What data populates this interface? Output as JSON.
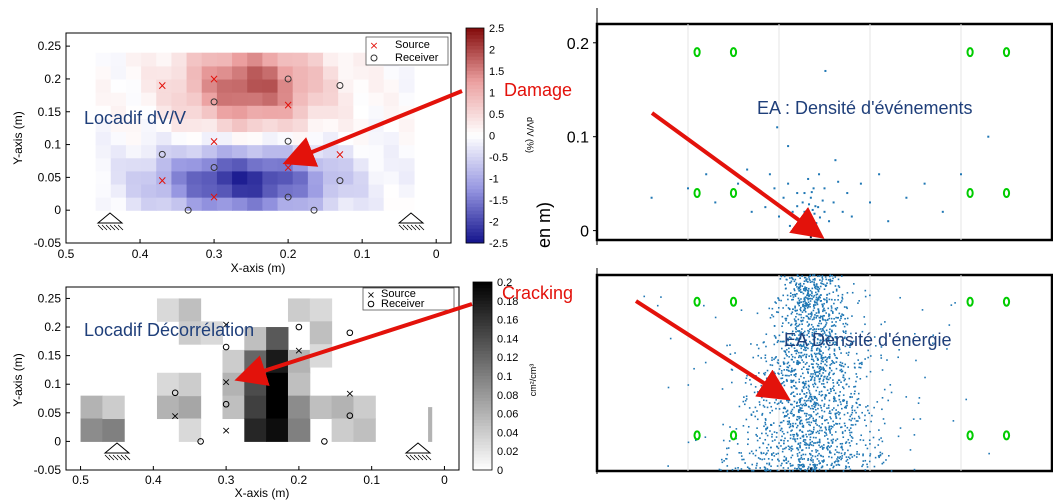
{
  "annotations": {
    "damage": "Damage",
    "cracking": "Cracking",
    "locadif_dvv": "Locadif dV/V",
    "locadif_decorr": "Locadif Décorrélation",
    "ea_events": "EA : Densité d'événements",
    "ea_energy": "EA   Densité d'énergie",
    "partial_axis": "en m)"
  },
  "colors": {
    "arrow": "#e3120b",
    "overlay_text": "#1f3f7a",
    "ae_points": "#1f77b4",
    "sensors": "#00cc00"
  },
  "chart_data": [
    {
      "type": "heatmap",
      "id": "dvv",
      "title": "",
      "xlabel": "X-axis (m)",
      "ylabel": "Y-axis (m)",
      "xlim": [
        0.5,
        -0.02
      ],
      "ylim": [
        -0.05,
        0.27
      ],
      "xticks": [
        "0.5",
        "0.4",
        "0.3",
        "0.2",
        "0.1",
        "0"
      ],
      "xtick_values": [
        0.5,
        0.4,
        0.3,
        0.2,
        0.1,
        0
      ],
      "yticks": [
        "-0.05",
        "0",
        "0.05",
        "0.1",
        "0.15",
        "0.2",
        "0.25"
      ],
      "ytick_values": [
        -0.05,
        0,
        0.05,
        0.1,
        0.15,
        0.2,
        0.25
      ],
      "colorbar": {
        "range": [
          -2.5,
          2.5
        ],
        "ticks": [
          "2.5",
          "2",
          "1.5",
          "1",
          "0.5",
          "0",
          "-0.5",
          "-1",
          "-1.5",
          "-2",
          "-2.5"
        ],
        "tick_values": [
          2.5,
          2,
          1.5,
          1,
          0.5,
          0,
          -0.5,
          -1,
          -1.5,
          -2,
          -2.5
        ],
        "label": "dV/V (%)",
        "colormap": "blue-white-red"
      },
      "legend": {
        "position": "top-right",
        "entries": [
          {
            "label": "Source",
            "marker": "x",
            "color": "#e3120b"
          },
          {
            "label": "Receiver",
            "marker": "o",
            "color": "#333333"
          }
        ]
      },
      "sources": [
        [
          0.37,
          0.19
        ],
        [
          0.3,
          0.2
        ],
        [
          0.2,
          0.16
        ],
        [
          0.3,
          0.105
        ],
        [
          0.13,
          0.085
        ],
        [
          0.37,
          0.045
        ],
        [
          0.2,
          0.065
        ],
        [
          0.3,
          0.02
        ]
      ],
      "receivers": [
        [
          0.2,
          0.2
        ],
        [
          0.13,
          0.19
        ],
        [
          0.3,
          0.165
        ],
        [
          0.2,
          0.105
        ],
        [
          0.37,
          0.085
        ],
        [
          0.3,
          0.065
        ],
        [
          0.13,
          0.045
        ],
        [
          0.2,
          0.02
        ],
        [
          0.335,
          0
        ],
        [
          0.165,
          0
        ]
      ],
      "supports": [
        [
          0.46,
          -0.01
        ],
        [
          0.02,
          -0.01
        ]
      ],
      "field": {
        "x_range": [
          0.5,
          0.0
        ],
        "y_range": [
          0.0,
          0.25
        ],
        "cols": 21,
        "rows": 12,
        "blobs": [
          {
            "x": 0.25,
            "y": 0.19,
            "sx": 0.065,
            "sy": 0.045,
            "amp": 1.9
          },
          {
            "x": 0.26,
            "y": 0.045,
            "sx": 0.085,
            "sy": 0.035,
            "amp": -2.3
          }
        ],
        "domain_x": [
          0.46,
          0.03
        ],
        "domain_y": [
          0.0,
          0.24
        ]
      }
    },
    {
      "type": "heatmap",
      "id": "decorrelation",
      "title": "",
      "xlabel": "X-axis (m)",
      "ylabel": "Y-axis (m)",
      "xlim": [
        0.52,
        -0.02
      ],
      "ylim": [
        -0.05,
        0.27
      ],
      "xticks": [
        "0.5",
        "0.4",
        "0.3",
        "0.2",
        "0.1",
        "0"
      ],
      "xtick_values": [
        0.5,
        0.4,
        0.3,
        0.2,
        0.1,
        0
      ],
      "yticks": [
        "-0.05",
        "0",
        "0.05",
        "0.1",
        "0.15",
        "0.2",
        "0.25"
      ],
      "ytick_values": [
        -0.05,
        0,
        0.05,
        0.1,
        0.15,
        0.2,
        0.25
      ],
      "colorbar": {
        "range": [
          0,
          0.2
        ],
        "ticks": [
          "0.2",
          "0.18",
          "0.16",
          "0.14",
          "0.12",
          "0.1",
          "0.08",
          "0.06",
          "0.04",
          "0.02",
          "0"
        ],
        "tick_values": [
          0.2,
          0.18,
          0.16,
          0.14,
          0.12,
          0.1,
          0.08,
          0.06,
          0.04,
          0.02,
          0
        ],
        "label": "cm²/cm³",
        "colormap": "white-black"
      },
      "legend": {
        "position": "top-right",
        "entries": [
          {
            "label": "Source",
            "marker": "x",
            "color": "#000000"
          },
          {
            "label": "Receiver",
            "marker": "o",
            "color": "#000000"
          }
        ]
      },
      "sources": [
        [
          0.3,
          0.205
        ],
        [
          0.2,
          0.16
        ],
        [
          0.3,
          0.105
        ],
        [
          0.13,
          0.085
        ],
        [
          0.37,
          0.045
        ],
        [
          0.3,
          0.02
        ]
      ],
      "receivers": [
        [
          0.2,
          0.2
        ],
        [
          0.13,
          0.19
        ],
        [
          0.3,
          0.165
        ],
        [
          0.37,
          0.085
        ],
        [
          0.3,
          0.065
        ],
        [
          0.13,
          0.045
        ],
        [
          0.335,
          0
        ],
        [
          0.165,
          0
        ]
      ],
      "supports": [
        [
          0.46,
          -0.01
        ],
        [
          0.02,
          -0.01
        ]
      ],
      "field": {
        "cells": [
          [
            0.485,
            0.06,
            0.03,
            0.04,
            0.06
          ],
          [
            0.485,
            0.02,
            0.03,
            0.04,
            0.09
          ],
          [
            0.455,
            0.02,
            0.03,
            0.04,
            0.1
          ],
          [
            0.455,
            0.06,
            0.03,
            0.04,
            0.04
          ],
          [
            0.38,
            0.23,
            0.03,
            0.04,
            0.03
          ],
          [
            0.35,
            0.23,
            0.03,
            0.04,
            0.05
          ],
          [
            0.35,
            0.19,
            0.03,
            0.04,
            0.04
          ],
          [
            0.32,
            0.19,
            0.03,
            0.04,
            0.03
          ],
          [
            0.38,
            0.1,
            0.03,
            0.04,
            0.03
          ],
          [
            0.38,
            0.06,
            0.03,
            0.04,
            0.06
          ],
          [
            0.35,
            0.06,
            0.03,
            0.04,
            0.07
          ],
          [
            0.35,
            0.1,
            0.03,
            0.04,
            0.04
          ],
          [
            0.35,
            0.02,
            0.03,
            0.04,
            0.03
          ],
          [
            0.29,
            0.14,
            0.03,
            0.04,
            0.04
          ],
          [
            0.29,
            0.1,
            0.03,
            0.04,
            0.06
          ],
          [
            0.29,
            0.06,
            0.03,
            0.04,
            0.05
          ],
          [
            0.26,
            0.14,
            0.03,
            0.04,
            0.12
          ],
          [
            0.26,
            0.1,
            0.03,
            0.04,
            0.14
          ],
          [
            0.26,
            0.06,
            0.03,
            0.04,
            0.15
          ],
          [
            0.26,
            0.02,
            0.03,
            0.04,
            0.17
          ],
          [
            0.26,
            0.18,
            0.03,
            0.04,
            0.05
          ],
          [
            0.23,
            0.18,
            0.03,
            0.04,
            0.13
          ],
          [
            0.23,
            0.14,
            0.03,
            0.04,
            0.18
          ],
          [
            0.23,
            0.1,
            0.03,
            0.04,
            0.2
          ],
          [
            0.23,
            0.06,
            0.03,
            0.04,
            0.2
          ],
          [
            0.23,
            0.02,
            0.03,
            0.04,
            0.19
          ],
          [
            0.2,
            0.14,
            0.03,
            0.04,
            0.06
          ],
          [
            0.2,
            0.1,
            0.03,
            0.04,
            0.05
          ],
          [
            0.2,
            0.06,
            0.03,
            0.04,
            0.09
          ],
          [
            0.2,
            0.02,
            0.03,
            0.04,
            0.1
          ],
          [
            0.2,
            0.23,
            0.03,
            0.04,
            0.04
          ],
          [
            0.17,
            0.23,
            0.03,
            0.04,
            0.03
          ],
          [
            0.17,
            0.19,
            0.03,
            0.04,
            0.05
          ],
          [
            0.17,
            0.15,
            0.03,
            0.04,
            0.03
          ],
          [
            0.17,
            0.06,
            0.03,
            0.04,
            0.05
          ],
          [
            0.14,
            0.06,
            0.03,
            0.04,
            0.06
          ],
          [
            0.14,
            0.02,
            0.03,
            0.04,
            0.04
          ],
          [
            0.11,
            0.06,
            0.03,
            0.04,
            0.04
          ],
          [
            0.11,
            0.02,
            0.03,
            0.04,
            0.05
          ],
          [
            0.02,
            0.03,
            0.005,
            0.06,
            0.06
          ]
        ]
      }
    },
    {
      "type": "scatter",
      "id": "ea_events",
      "xlabel": "",
      "ylabel": "en m)",
      "ylim": [
        -0.01,
        0.22
      ],
      "xlim": [
        0.0,
        0.5
      ],
      "yticks": [
        "0",
        "0.1",
        "0.2"
      ],
      "ytick_values": [
        0,
        0.1,
        0.2
      ],
      "sensors": [
        [
          0.11,
          0.19
        ],
        [
          0.15,
          0.19
        ],
        [
          0.41,
          0.19
        ],
        [
          0.45,
          0.19
        ],
        [
          0.11,
          0.04
        ],
        [
          0.15,
          0.04
        ],
        [
          0.41,
          0.04
        ],
        [
          0.45,
          0.04
        ]
      ],
      "events": [
        [
          0.235,
          0.003
        ],
        [
          0.236,
          0.01
        ],
        [
          0.234,
          0.016
        ],
        [
          0.237,
          0.022
        ],
        [
          0.233,
          0.028
        ],
        [
          0.238,
          0.006
        ],
        [
          0.232,
          0.012
        ],
        [
          0.239,
          0.018
        ],
        [
          0.23,
          0.004
        ],
        [
          0.241,
          0.008
        ],
        [
          0.228,
          0.02
        ],
        [
          0.243,
          0.025
        ],
        [
          0.235,
          0.035
        ],
        [
          0.226,
          0.03
        ],
        [
          0.245,
          0.014
        ],
        [
          0.222,
          0.01
        ],
        [
          0.248,
          0.032
        ],
        [
          0.22,
          0.04
        ],
        [
          0.25,
          0.045
        ],
        [
          0.215,
          0.02
        ],
        [
          0.255,
          0.01
        ],
        [
          0.21,
          0.05
        ],
        [
          0.26,
          0.03
        ],
        [
          0.205,
          0.035
        ],
        [
          0.265,
          0.052
        ],
        [
          0.2,
          0.015
        ],
        [
          0.27,
          0.02
        ],
        [
          0.195,
          0.045
        ],
        [
          0.275,
          0.04
        ],
        [
          0.19,
          0.06
        ],
        [
          0.28,
          0.015
        ],
        [
          0.185,
          0.025
        ],
        [
          0.29,
          0.05
        ],
        [
          0.18,
          0.04
        ],
        [
          0.3,
          0.03
        ],
        [
          0.17,
          0.02
        ],
        [
          0.31,
          0.06
        ],
        [
          0.165,
          0.065
        ],
        [
          0.32,
          0.01
        ],
        [
          0.155,
          0.05
        ],
        [
          0.34,
          0.035
        ],
        [
          0.13,
          0.03
        ],
        [
          0.36,
          0.05
        ],
        [
          0.12,
          0.06
        ],
        [
          0.38,
          0.02
        ],
        [
          0.1,
          0.045
        ],
        [
          0.4,
          0.06
        ],
        [
          0.06,
          0.035
        ],
        [
          0.43,
          0.1
        ],
        [
          0.251,
          0.17
        ],
        [
          0.21,
          0.09
        ],
        [
          0.262,
          0.075
        ],
        [
          0.198,
          0.11
        ],
        [
          0.238,
          0.045
        ],
        [
          0.232,
          0.055
        ],
        [
          0.244,
          0.06
        ],
        [
          0.228,
          0.04
        ],
        [
          0.24,
          0.026
        ],
        [
          0.236,
          0.041
        ],
        [
          0.242,
          0.002
        ],
        [
          0.229,
          0.001
        ],
        [
          0.25,
          0.02
        ],
        [
          0.22,
          0.026
        ],
        [
          0.212,
          0.005
        ]
      ]
    },
    {
      "type": "scatter",
      "id": "ea_energy",
      "xlabel": "",
      "ylabel": "",
      "xlim": [
        0.0,
        0.5
      ],
      "ylim": [
        0.0,
        0.22
      ],
      "sensors": [
        [
          0.11,
          0.19
        ],
        [
          0.15,
          0.19
        ],
        [
          0.41,
          0.19
        ],
        [
          0.45,
          0.19
        ],
        [
          0.11,
          0.04
        ],
        [
          0.15,
          0.04
        ],
        [
          0.41,
          0.04
        ],
        [
          0.45,
          0.04
        ]
      ],
      "cloud": {
        "n": 1800,
        "cx": 0.235,
        "sx": 0.03,
        "y_top": 0.22,
        "wide_n": 160,
        "seed": 7
      }
    }
  ]
}
